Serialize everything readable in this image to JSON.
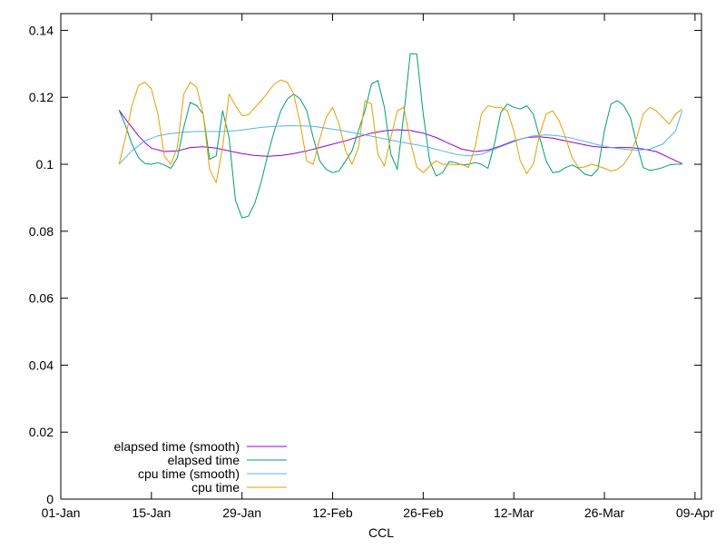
{
  "chart_data": {
    "type": "line",
    "xlabel": "CCL",
    "ylabel": "",
    "x_ticks": [
      "01-Jan",
      "15-Jan",
      "29-Jan",
      "12-Feb",
      "26-Feb",
      "12-Mar",
      "26-Mar",
      "09-Apr"
    ],
    "y_ticks": [
      "0",
      "0.02",
      "0.04",
      "0.06",
      "0.08",
      "0.1",
      "0.12",
      "0.14"
    ],
    "ylim": [
      0,
      0.145
    ],
    "xlim": [
      "2020-01-01",
      "2020-04-09"
    ],
    "grid": false,
    "legend_position": "bottom-left",
    "series": [
      {
        "name": "elapsed time (smooth)",
        "color": "#9400d3",
        "x": [
          "2020-01-10",
          "2020-01-11",
          "2020-01-12",
          "2020-01-13",
          "2020-01-14",
          "2020-01-15",
          "2020-01-17",
          "2020-01-19",
          "2020-01-21",
          "2020-01-23",
          "2020-01-25",
          "2020-01-27",
          "2020-01-29",
          "2020-01-31",
          "2020-02-02",
          "2020-02-04",
          "2020-02-06",
          "2020-02-08",
          "2020-02-10",
          "2020-02-12",
          "2020-02-14",
          "2020-02-16",
          "2020-02-18",
          "2020-02-20",
          "2020-02-22",
          "2020-02-24",
          "2020-02-26",
          "2020-02-28",
          "2020-03-01",
          "2020-03-03",
          "2020-03-05",
          "2020-03-07",
          "2020-03-09",
          "2020-03-11",
          "2020-03-13",
          "2020-03-15",
          "2020-03-17",
          "2020-03-19",
          "2020-03-21",
          "2020-03-23",
          "2020-03-25",
          "2020-03-27",
          "2020-03-29",
          "2020-03-31",
          "2020-04-02",
          "2020-04-04",
          "2020-04-06"
        ],
        "values": [
          0.1162,
          0.1135,
          0.111,
          0.1085,
          0.1065,
          0.1048,
          0.1038,
          0.104,
          0.105,
          0.1052,
          0.1048,
          0.104,
          0.1032,
          0.1026,
          0.1024,
          0.1026,
          0.1032,
          0.104,
          0.105,
          0.106,
          0.107,
          0.1082,
          0.1093,
          0.11,
          0.1103,
          0.1101,
          0.1093,
          0.108,
          0.1062,
          0.1045,
          0.1038,
          0.1042,
          0.1055,
          0.107,
          0.108,
          0.1082,
          0.1078,
          0.107,
          0.1062,
          0.1054,
          0.105,
          0.105,
          0.105,
          0.1046,
          0.1038,
          0.102,
          0.1002
        ]
      },
      {
        "name": "elapsed time",
        "color": "#009e73",
        "x": [
          "2020-01-10",
          "2020-01-11",
          "2020-01-12",
          "2020-01-13",
          "2020-01-14",
          "2020-01-15",
          "2020-01-16",
          "2020-01-17",
          "2020-01-18",
          "2020-01-19",
          "2020-01-20",
          "2020-01-21",
          "2020-01-22",
          "2020-01-23",
          "2020-01-24",
          "2020-01-25",
          "2020-01-26",
          "2020-01-27",
          "2020-01-28",
          "2020-01-29",
          "2020-01-30",
          "2020-01-31",
          "2020-02-01",
          "2020-02-02",
          "2020-02-03",
          "2020-02-04",
          "2020-02-05",
          "2020-02-06",
          "2020-02-07",
          "2020-02-08",
          "2020-02-09",
          "2020-02-10",
          "2020-02-11",
          "2020-02-12",
          "2020-02-13",
          "2020-02-14",
          "2020-02-15",
          "2020-02-16",
          "2020-02-17",
          "2020-02-18",
          "2020-02-19",
          "2020-02-20",
          "2020-02-21",
          "2020-02-22",
          "2020-02-23",
          "2020-02-24",
          "2020-02-25",
          "2020-02-26",
          "2020-02-27",
          "2020-02-28",
          "2020-02-29",
          "2020-03-01",
          "2020-03-02",
          "2020-03-03",
          "2020-03-04",
          "2020-03-05",
          "2020-03-06",
          "2020-03-07",
          "2020-03-08",
          "2020-03-09",
          "2020-03-10",
          "2020-03-11",
          "2020-03-12",
          "2020-03-13",
          "2020-03-14",
          "2020-03-15",
          "2020-03-16",
          "2020-03-17",
          "2020-03-18",
          "2020-03-19",
          "2020-03-20",
          "2020-03-21",
          "2020-03-22",
          "2020-03-23",
          "2020-03-24",
          "2020-03-25",
          "2020-03-26",
          "2020-03-27",
          "2020-03-28",
          "2020-03-29",
          "2020-03-30",
          "2020-03-31",
          "2020-04-01",
          "2020-04-02",
          "2020-04-03",
          "2020-04-04",
          "2020-04-05",
          "2020-04-06"
        ],
        "values": [
          0.1162,
          0.1115,
          0.106,
          0.102,
          0.1002,
          0.1,
          0.1005,
          0.0998,
          0.0988,
          0.102,
          0.111,
          0.1185,
          0.1175,
          0.115,
          0.1015,
          0.1025,
          0.116,
          0.108,
          0.0892,
          0.084,
          0.0845,
          0.0885,
          0.095,
          0.103,
          0.11,
          0.116,
          0.1195,
          0.121,
          0.1195,
          0.116,
          0.108,
          0.101,
          0.0985,
          0.0975,
          0.098,
          0.101,
          0.104,
          0.11,
          0.116,
          0.124,
          0.125,
          0.117,
          0.103,
          0.0985,
          0.115,
          0.133,
          0.133,
          0.115,
          0.101,
          0.0965,
          0.0975,
          0.1008,
          0.1005,
          0.0998,
          0.1,
          0.1005,
          0.1,
          0.0988,
          0.106,
          0.1155,
          0.118,
          0.117,
          0.1165,
          0.1175,
          0.115,
          0.108,
          0.101,
          0.0975,
          0.0978,
          0.099,
          0.0998,
          0.0988,
          0.097,
          0.0965,
          0.0985,
          0.11,
          0.118,
          0.119,
          0.1175,
          0.114,
          0.106,
          0.099,
          0.0982,
          0.0985,
          0.099,
          0.0998,
          0.1,
          0.1
        ]
      },
      {
        "name": "cpu time (smooth)",
        "color": "#56b4e9",
        "x": [
          "2020-01-10",
          "2020-01-12",
          "2020-01-14",
          "2020-01-16",
          "2020-01-18",
          "2020-01-20",
          "2020-01-22",
          "2020-01-24",
          "2020-01-26",
          "2020-01-28",
          "2020-01-30",
          "2020-02-01",
          "2020-02-03",
          "2020-02-05",
          "2020-02-07",
          "2020-02-09",
          "2020-02-11",
          "2020-02-13",
          "2020-02-15",
          "2020-02-17",
          "2020-02-19",
          "2020-02-21",
          "2020-02-23",
          "2020-02-25",
          "2020-02-27",
          "2020-02-29",
          "2020-03-02",
          "2020-03-04",
          "2020-03-06",
          "2020-03-08",
          "2020-03-10",
          "2020-03-12",
          "2020-03-14",
          "2020-03-16",
          "2020-03-18",
          "2020-03-20",
          "2020-03-22",
          "2020-03-24",
          "2020-03-26",
          "2020-03-28",
          "2020-03-30",
          "2020-04-01",
          "2020-04-03",
          "2020-04-05",
          "2020-04-06"
        ],
        "values": [
          0.1,
          0.104,
          0.107,
          0.1085,
          0.1092,
          0.1096,
          0.1098,
          0.1098,
          0.1098,
          0.11,
          0.1105,
          0.111,
          0.1113,
          0.1115,
          0.1115,
          0.1113,
          0.1108,
          0.1102,
          0.1095,
          0.1088,
          0.108,
          0.1072,
          0.1065,
          0.1058,
          0.105,
          0.104,
          0.103,
          0.1025,
          0.103,
          0.1045,
          0.106,
          0.1075,
          0.1085,
          0.1088,
          0.1085,
          0.1078,
          0.1068,
          0.1058,
          0.105,
          0.1045,
          0.1042,
          0.1045,
          0.106,
          0.11,
          0.116
        ]
      },
      {
        "name": "cpu time",
        "color": "#e69f00",
        "x": [
          "2020-01-10",
          "2020-01-11",
          "2020-01-12",
          "2020-01-13",
          "2020-01-14",
          "2020-01-15",
          "2020-01-16",
          "2020-01-17",
          "2020-01-18",
          "2020-01-19",
          "2020-01-20",
          "2020-01-21",
          "2020-01-22",
          "2020-01-23",
          "2020-01-24",
          "2020-01-25",
          "2020-01-26",
          "2020-01-27",
          "2020-01-28",
          "2020-01-29",
          "2020-01-30",
          "2020-01-31",
          "2020-02-01",
          "2020-02-02",
          "2020-02-03",
          "2020-02-04",
          "2020-02-05",
          "2020-02-06",
          "2020-02-07",
          "2020-02-08",
          "2020-02-09",
          "2020-02-10",
          "2020-02-11",
          "2020-02-12",
          "2020-02-13",
          "2020-02-14",
          "2020-02-15",
          "2020-02-16",
          "2020-02-17",
          "2020-02-18",
          "2020-02-19",
          "2020-02-20",
          "2020-02-21",
          "2020-02-22",
          "2020-02-23",
          "2020-02-24",
          "2020-02-25",
          "2020-02-26",
          "2020-02-27",
          "2020-02-28",
          "2020-02-29",
          "2020-03-01",
          "2020-03-02",
          "2020-03-03",
          "2020-03-04",
          "2020-03-05",
          "2020-03-06",
          "2020-03-07",
          "2020-03-08",
          "2020-03-09",
          "2020-03-10",
          "2020-03-11",
          "2020-03-12",
          "2020-03-13",
          "2020-03-14",
          "2020-03-15",
          "2020-03-16",
          "2020-03-17",
          "2020-03-18",
          "2020-03-19",
          "2020-03-20",
          "2020-03-21",
          "2020-03-22",
          "2020-03-23",
          "2020-03-24",
          "2020-03-25",
          "2020-03-26",
          "2020-03-27",
          "2020-03-28",
          "2020-03-29",
          "2020-03-30",
          "2020-03-31",
          "2020-04-01",
          "2020-04-02",
          "2020-04-03",
          "2020-04-04",
          "2020-04-05",
          "2020-04-06"
        ],
        "values": [
          0.1,
          0.108,
          0.1175,
          0.1235,
          0.1245,
          0.1225,
          0.115,
          0.1025,
          0.1,
          0.105,
          0.121,
          0.1245,
          0.123,
          0.115,
          0.0985,
          0.0945,
          0.105,
          0.121,
          0.1175,
          0.1145,
          0.1148,
          0.117,
          0.119,
          0.1215,
          0.124,
          0.1252,
          0.1245,
          0.121,
          0.112,
          0.101,
          0.1,
          0.1075,
          0.114,
          0.117,
          0.112,
          0.104,
          0.1,
          0.105,
          0.119,
          0.118,
          0.103,
          0.0995,
          0.108,
          0.116,
          0.117,
          0.107,
          0.0992,
          0.0975,
          0.0995,
          0.101,
          0.1,
          0.1,
          0.0998,
          0.1,
          0.099,
          0.105,
          0.115,
          0.1175,
          0.117,
          0.117,
          0.116,
          0.11,
          0.101,
          0.0972,
          0.1,
          0.109,
          0.115,
          0.116,
          0.113,
          0.108,
          0.102,
          0.099,
          0.0992,
          0.1,
          0.0995,
          0.0988,
          0.098,
          0.0985,
          0.1,
          0.103,
          0.108,
          0.115,
          0.117,
          0.116,
          0.114,
          0.112,
          0.115,
          0.1165
        ]
      }
    ]
  }
}
